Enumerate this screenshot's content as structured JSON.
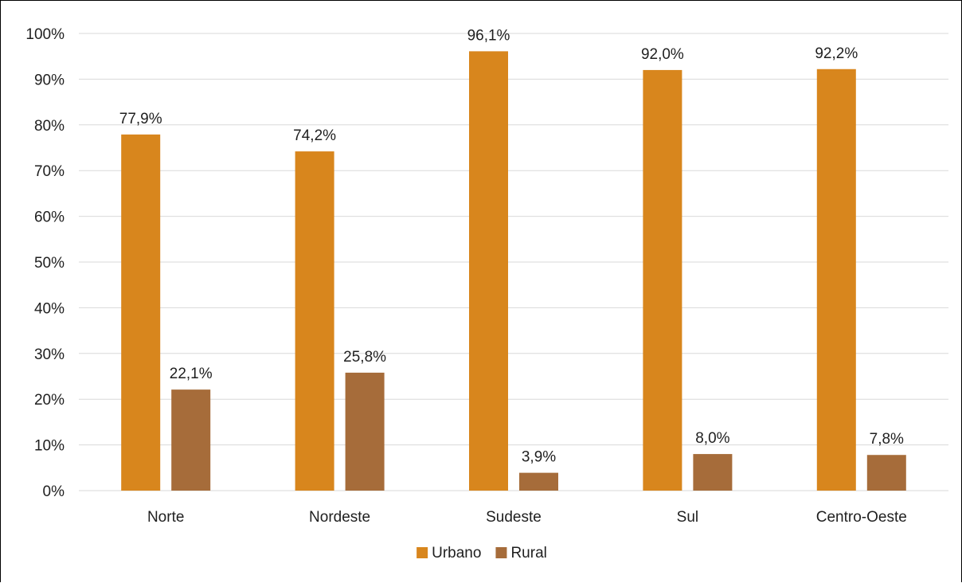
{
  "chart_data": {
    "type": "bar",
    "title": "",
    "xlabel": "",
    "ylabel": "",
    "categories": [
      "Norte",
      "Nordeste",
      "Sudeste",
      "Sul",
      "Centro-Oeste"
    ],
    "series": [
      {
        "name": "Urbano",
        "color": "#d8861d",
        "values": [
          77.9,
          74.2,
          96.1,
          92.0,
          92.2
        ],
        "labels": [
          "77,9%",
          "74,2%",
          "96,1%",
          "92,0%",
          "92,2%"
        ]
      },
      {
        "name": "Rural",
        "color": "#a66c3a",
        "values": [
          22.1,
          25.8,
          3.9,
          8.0,
          7.8
        ],
        "labels": [
          "22,1%",
          "25,8%",
          "3,9%",
          "8,0%",
          "7,8%"
        ]
      }
    ],
    "ylim": [
      0,
      100
    ],
    "yticks": [
      0,
      10,
      20,
      30,
      40,
      50,
      60,
      70,
      80,
      90,
      100
    ],
    "ytick_labels": [
      "0%",
      "10%",
      "20%",
      "30%",
      "40%",
      "50%",
      "60%",
      "70%",
      "80%",
      "90%",
      "100%"
    ],
    "grid": true,
    "legend": "bottom-center",
    "gridline_color": "#d9d9d9"
  }
}
